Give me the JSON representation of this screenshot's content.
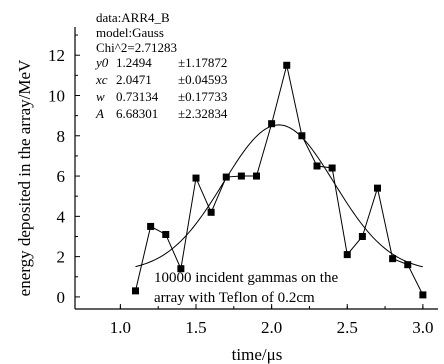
{
  "chart_data": {
    "type": "scatter",
    "xlabel": "time/μs",
    "ylabel": "energy deposited in the array/MeV",
    "xlim": [
      0.7,
      3.1
    ],
    "ylim": [
      -0.6,
      13.4
    ],
    "x_ticks": [
      "1.0",
      "1.5",
      "2.0",
      "2.5",
      "3.0"
    ],
    "y_ticks": [
      "0",
      "2",
      "4",
      "6",
      "8",
      "10",
      "12"
    ],
    "grid": false,
    "x": [
      1.1,
      1.2,
      1.3,
      1.4,
      1.5,
      1.6,
      1.7,
      1.8,
      1.9,
      2.0,
      2.1,
      2.2,
      2.3,
      2.4,
      2.5,
      2.6,
      2.7,
      2.8,
      2.9,
      3.0
    ],
    "y": [
      0.3,
      3.5,
      3.1,
      1.4,
      5.9,
      4.2,
      5.95,
      6.0,
      6.0,
      8.6,
      11.5,
      8.0,
      6.5,
      6.4,
      2.1,
      3.0,
      5.4,
      1.9,
      1.6,
      0.1
    ],
    "fit": {
      "model_name": "Gauss",
      "y0": 1.2494,
      "xc": 2.0471,
      "w": 0.73134,
      "A": 6.68301,
      "x_range": [
        1.1,
        3.0
      ]
    },
    "fit_box": {
      "line_data": "data:ARR4_B",
      "line_model": "model:Gauss",
      "line_chi": "Chi^2=2.71283",
      "params": [
        {
          "name": "y0",
          "value": "1.2494",
          "error": "±1.17872"
        },
        {
          "name": "xc",
          "value": "2.0471",
          "error": "±0.04593"
        },
        {
          "name": "w",
          "value": "0.73134",
          "error": "±0.17733"
        },
        {
          "name": "A",
          "value": "6.68301",
          "error": "±2.32834"
        }
      ]
    },
    "annotation_lines": [
      "10000 incident gammas on the",
      "array with Teflon of 0.2cm"
    ]
  }
}
